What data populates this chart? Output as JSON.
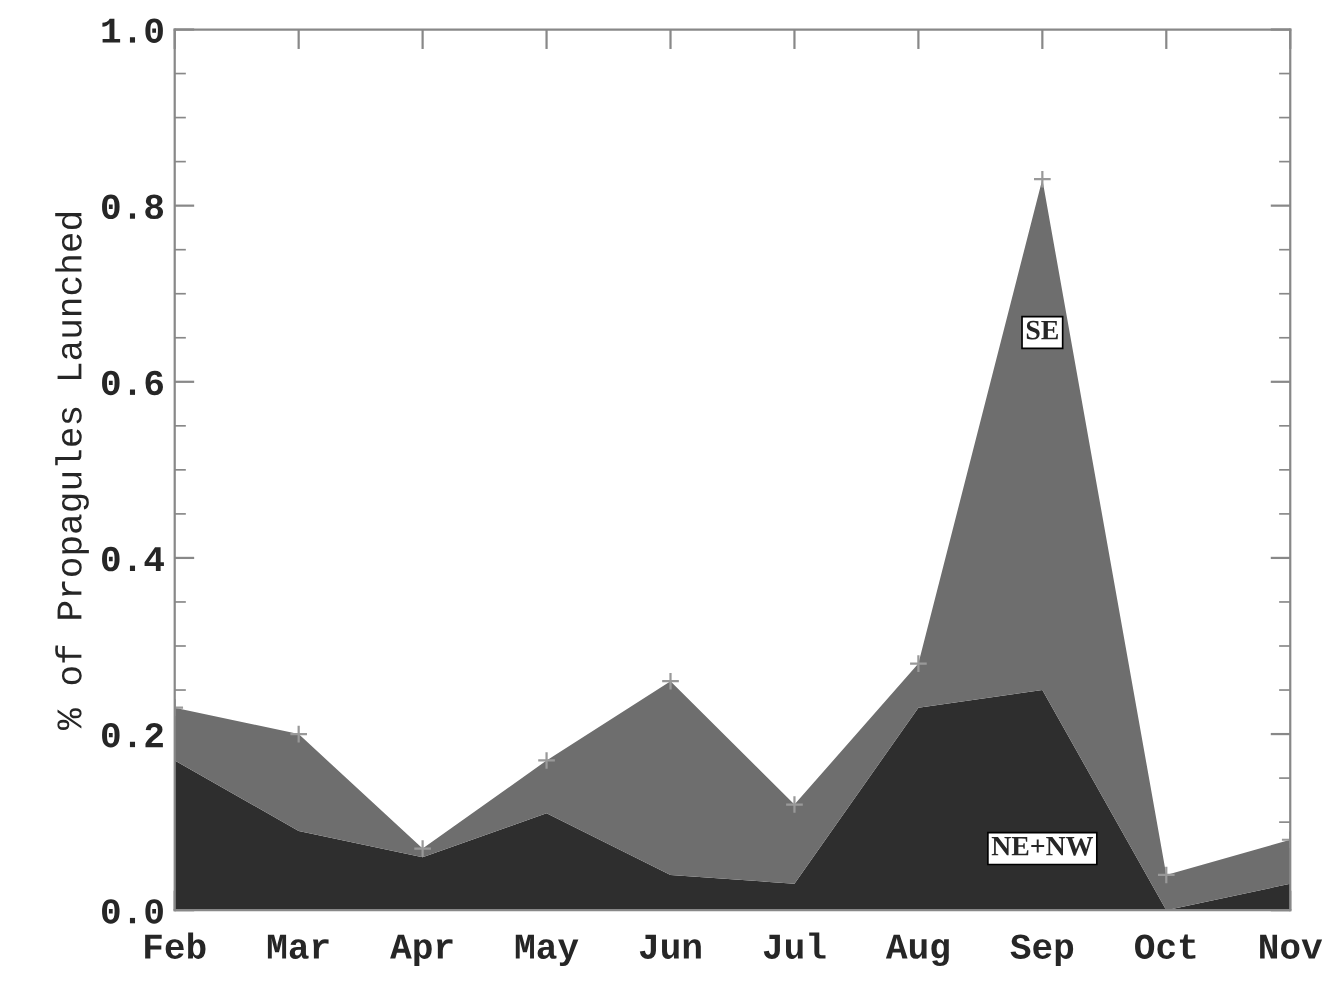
{
  "chart_data": {
    "type": "area",
    "stacked": true,
    "ylabel": "% of Propagules Launched",
    "categories": [
      "Feb",
      "Mar",
      "Apr",
      "May",
      "Jun",
      "Jul",
      "Aug",
      "Sep",
      "Oct",
      "Nov"
    ],
    "series": [
      {
        "name": "NE+NW",
        "color": "#2e2e2e",
        "values": [
          0.17,
          0.09,
          0.06,
          0.11,
          0.04,
          0.03,
          0.23,
          0.25,
          0.0,
          0.03
        ]
      },
      {
        "name": "SE",
        "color": "#6e6e6e",
        "marker": "cross",
        "values": [
          0.06,
          0.11,
          0.01,
          0.06,
          0.22,
          0.09,
          0.05,
          0.58,
          0.04,
          0.05
        ]
      }
    ],
    "ylim": [
      0.0,
      1.0
    ],
    "yticks": [
      {
        "value": 0.0,
        "label": "0.0"
      },
      {
        "value": 0.2,
        "label": "0.2"
      },
      {
        "value": 0.4,
        "label": "0.4"
      },
      {
        "value": 0.6,
        "label": "0.6"
      },
      {
        "value": 0.8,
        "label": "0.8"
      },
      {
        "value": 1.0,
        "label": "1.0"
      }
    ],
    "grid": false,
    "legend": false
  }
}
